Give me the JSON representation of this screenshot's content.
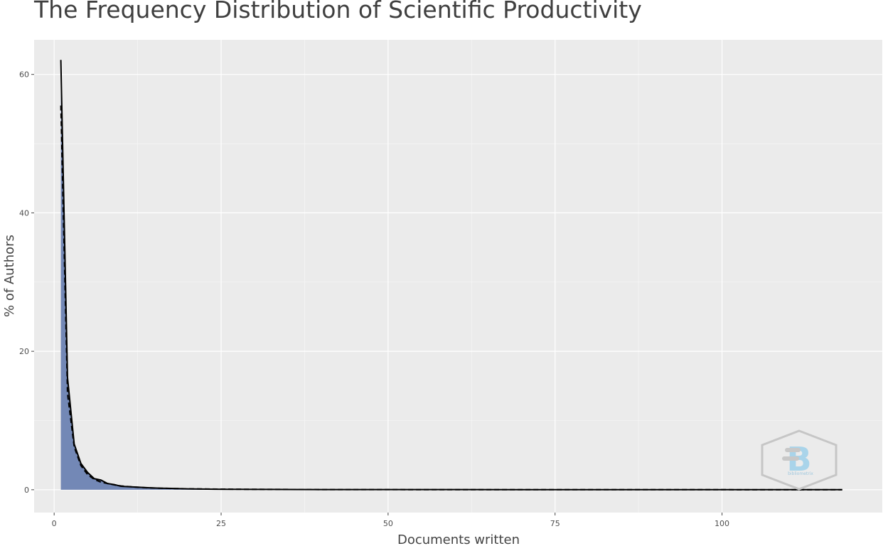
{
  "chart_data": {
    "type": "area",
    "title": "The Frequency Distribution of Scientific Productivity",
    "xlabel": "Documents written",
    "ylabel": "% of Authors",
    "xlim": [
      -3,
      124
    ],
    "ylim": [
      -3.3,
      65
    ],
    "x_ticks": [
      0,
      25,
      50,
      75,
      100
    ],
    "y_ticks": [
      0,
      20,
      40,
      60
    ],
    "grid": true,
    "legend": "none",
    "series": [
      {
        "style": "filled area with solid line",
        "fill_color": "#7388b6",
        "line_color": "#000000",
        "x": [
          1,
          2,
          3,
          4,
          5,
          6,
          7,
          8,
          9,
          10,
          11,
          12,
          13,
          14,
          15,
          16,
          17,
          18,
          19,
          20,
          22,
          24,
          26,
          28,
          30,
          35,
          40,
          50,
          60,
          70,
          80,
          90,
          100,
          110,
          118
        ],
        "y": [
          62.1,
          16.2,
          6.6,
          3.8,
          2.5,
          1.6,
          1.4,
          0.9,
          0.75,
          0.5,
          0.45,
          0.4,
          0.35,
          0.3,
          0.25,
          0.22,
          0.2,
          0.18,
          0.15,
          0.13,
          0.1,
          0.08,
          0.07,
          0.06,
          0.05,
          0.04,
          0.03,
          0.02,
          0.02,
          0.01,
          0.01,
          0.01,
          0.01,
          0.01,
          0.01
        ]
      },
      {
        "style": "dashed theoretical line",
        "line_color": "#000000",
        "x": [
          1,
          2,
          3,
          4,
          5,
          6,
          7,
          8,
          9,
          10,
          12,
          14,
          16,
          18,
          20,
          25,
          30,
          40,
          50,
          60,
          80,
          100,
          118
        ],
        "y": [
          55.5,
          13.9,
          6.2,
          3.5,
          2.2,
          1.5,
          1.1,
          0.9,
          0.7,
          0.55,
          0.39,
          0.28,
          0.22,
          0.17,
          0.14,
          0.09,
          0.06,
          0.03,
          0.02,
          0.015,
          0.009,
          0.006,
          0.004
        ]
      }
    ]
  },
  "watermark": {
    "name": "bibliometrix-logo",
    "text": "bibliometrix"
  }
}
